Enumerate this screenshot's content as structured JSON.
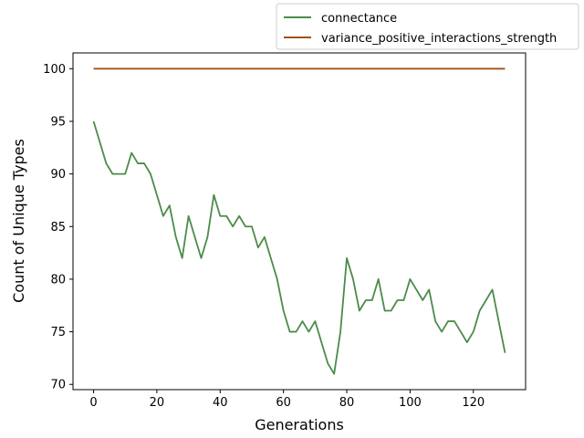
{
  "chart_data": {
    "type": "line",
    "title": "",
    "xlabel": "Generations",
    "ylabel": "Count of Unique Types",
    "xlim": [
      -6.5,
      136.5
    ],
    "ylim": [
      69.5,
      101.5
    ],
    "xticks": [
      0,
      20,
      40,
      60,
      80,
      100,
      120
    ],
    "yticks": [
      70,
      75,
      80,
      85,
      90,
      95,
      100
    ],
    "grid": false,
    "legend_position": "top-right, above plot",
    "series": [
      {
        "name": "connectance",
        "color": "#4b8b4b",
        "x": [
          0,
          2,
          4,
          6,
          8,
          10,
          12,
          14,
          16,
          18,
          20,
          22,
          24,
          26,
          28,
          30,
          32,
          34,
          36,
          38,
          40,
          42,
          44,
          46,
          48,
          50,
          52,
          54,
          56,
          58,
          60,
          62,
          64,
          66,
          68,
          70,
          72,
          74,
          76,
          78,
          80,
          82,
          84,
          86,
          88,
          90,
          92,
          94,
          96,
          98,
          100,
          102,
          104,
          106,
          108,
          110,
          112,
          114,
          116,
          118,
          120,
          122,
          124,
          126,
          128,
          130
        ],
        "values": [
          95,
          93,
          91,
          90,
          90,
          90,
          92,
          91,
          91,
          90,
          88,
          86,
          87,
          84,
          82,
          86,
          84,
          82,
          84,
          88,
          86,
          86,
          85,
          86,
          85,
          85,
          83,
          84,
          82,
          80,
          77,
          75,
          75,
          76,
          75,
          76,
          74,
          72,
          71,
          75,
          82,
          80,
          77,
          78,
          78,
          80,
          77,
          77,
          78,
          78,
          80,
          79,
          78,
          79,
          76,
          75,
          76,
          76,
          75,
          74,
          75,
          77,
          78,
          79,
          76,
          73
        ]
      },
      {
        "name": "variance_positive_interactions_strength",
        "color": "#a0521d",
        "x": [
          0,
          130
        ],
        "values": [
          100,
          100
        ]
      }
    ]
  }
}
